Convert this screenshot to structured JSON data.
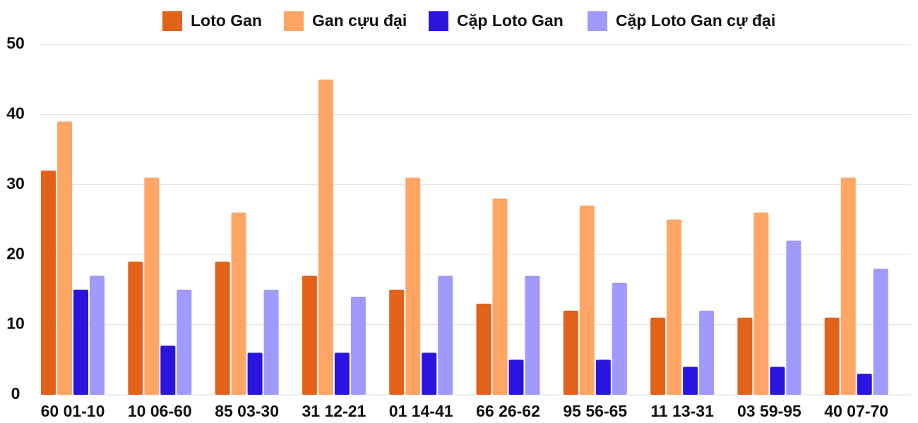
{
  "chart_data": {
    "type": "bar",
    "categories": [
      "60 01-10",
      "10 06-60",
      "85 03-30",
      "31 12-21",
      "01 14-41",
      "66 26-62",
      "95 56-65",
      "11 13-31",
      "03 59-95",
      "40 07-70"
    ],
    "series": [
      {
        "name": "Loto Gan",
        "color": "#e3621a",
        "values": [
          32,
          19,
          19,
          17,
          15,
          13,
          12,
          11,
          11,
          11
        ]
      },
      {
        "name": "Gan cựu đại",
        "color": "#ffa566",
        "values": [
          39,
          31,
          26,
          45,
          31,
          28,
          27,
          25,
          26,
          31
        ]
      },
      {
        "name": "Cặp Loto Gan",
        "color": "#2a15e0",
        "values": [
          15,
          7,
          6,
          6,
          6,
          5,
          5,
          4,
          4,
          3
        ]
      },
      {
        "name": "Cặp Loto Gan cự đại",
        "color": "#a09afc",
        "values": [
          17,
          15,
          15,
          14,
          17,
          17,
          16,
          12,
          22,
          18
        ]
      }
    ],
    "ylim": [
      0,
      50
    ],
    "yticks": [
      0,
      10,
      20,
      30,
      40,
      50
    ],
    "grid": true,
    "legend": "top"
  }
}
